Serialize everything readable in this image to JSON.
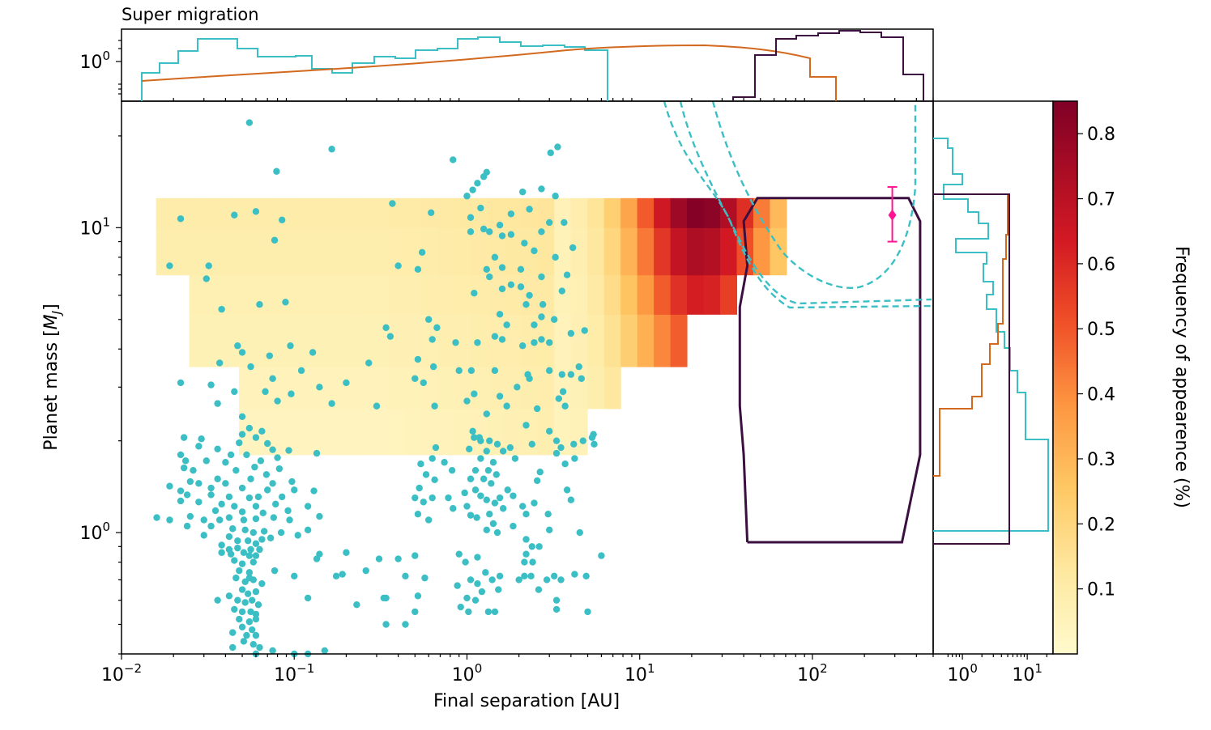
{
  "chart_data": {
    "type": "heatmap",
    "title": "Super migration",
    "xlabel": "Final separation [AU]",
    "ylabel": "Planet mass [M_J]",
    "ylabel_main": "Planet mass [",
    "ylabel_sym": "M",
    "ylabel_sub": "J",
    "ylabel_end": "]",
    "colorbar_label": "Frequency of appearence (%)",
    "x_scale": "log",
    "xlim": [
      0.01,
      500
    ],
    "y_scale": "log",
    "ylim": [
      0.4,
      26
    ],
    "x_ticks": [
      {
        "base": "10",
        "exp": "−2",
        "v": 0.01
      },
      {
        "base": "10",
        "exp": "−1",
        "v": 0.1
      },
      {
        "base": "10",
        "exp": "0",
        "v": 1
      },
      {
        "base": "10",
        "exp": "1",
        "v": 10
      },
      {
        "base": "10",
        "exp": "2",
        "v": 100
      }
    ],
    "y_ticks": [
      {
        "base": "10",
        "exp": "0",
        "v": 1
      },
      {
        "base": "10",
        "exp": "1",
        "v": 10
      }
    ],
    "colorbar_range": [
      0.0,
      0.85
    ],
    "colorbar_ticks": [
      "0.1",
      "0.2",
      "0.3",
      "0.4",
      "0.5",
      "0.6",
      "0.7",
      "0.8"
    ],
    "colors": {
      "scatter": "#3bbfc4",
      "orange_hist": "#d2691e",
      "purple_region": "#3b0f40",
      "marker": "#ff1493"
    },
    "top_hist_ticks": [
      {
        "base": "10",
        "exp": "0"
      }
    ],
    "right_hist_ticks": [
      {
        "base": "10",
        "exp": "0",
        "v": 1
      },
      {
        "base": "10",
        "exp": "1",
        "v": 10
      }
    ],
    "heatmap_mass_bins": [
      3.5,
      5.2,
      7.0,
      10.0,
      13.0
    ],
    "heatmap_cells": [
      {
        "x": 0.02,
        "y": 1.6,
        "f": 0.0
      }
    ],
    "observed_planet": {
      "sep": 290,
      "mass": 11.0,
      "mass_err": [
        9.0,
        13.6
      ]
    },
    "purple_region_outline": [
      [
        42,
        0.93
      ],
      [
        330,
        0.93
      ],
      [
        420,
        1.8
      ],
      [
        420,
        10.5
      ],
      [
        360,
        12.5
      ],
      [
        48,
        12.5
      ],
      [
        40,
        10.5
      ],
      [
        42,
        7.5
      ],
      [
        38,
        5.5
      ],
      [
        38,
        2.6
      ],
      [
        40,
        1.8
      ],
      [
        42,
        0.93
      ]
    ],
    "scatter_points": [
      [
        0.055,
        22.1
      ],
      [
        0.165,
        18.1
      ],
      [
        0.83,
        16.7
      ],
      [
        3.35,
        18.4
      ],
      [
        3.05,
        17.6
      ],
      [
        0.079,
        15.3
      ],
      [
        1.3,
        15.2
      ],
      [
        1.25,
        14.7
      ],
      [
        1.15,
        14.0
      ],
      [
        1.08,
        13.3
      ],
      [
        2.1,
        13.1
      ],
      [
        2.7,
        13.4
      ],
      [
        3.25,
        12.7
      ],
      [
        0.022,
        10.7
      ],
      [
        0.045,
        11.0
      ],
      [
        0.06,
        11.3
      ],
      [
        0.085,
        10.6
      ],
      [
        0.37,
        12.0
      ],
      [
        0.62,
        11.2
      ],
      [
        1.0,
        12.7
      ],
      [
        1.2,
        11.6
      ],
      [
        1.05,
        10.8
      ],
      [
        1.55,
        10.2
      ],
      [
        1.8,
        11.1
      ],
      [
        2.3,
        11.5
      ],
      [
        3.0,
        10.4
      ],
      [
        3.65,
        10.4
      ],
      [
        1.35,
        9.7
      ],
      [
        1.6,
        9.4
      ],
      [
        1.8,
        9.5
      ],
      [
        2.7,
        9.7
      ],
      [
        0.077,
        9.1
      ],
      [
        1.05,
        9.7
      ],
      [
        1.25,
        9.9
      ],
      [
        2.15,
        8.9
      ],
      [
        0.55,
        8.3
      ],
      [
        1.45,
        8.0
      ],
      [
        2.45,
        8.4
      ],
      [
        3.25,
        8.0
      ],
      [
        4.1,
        8.6
      ],
      [
        0.019,
        7.5
      ],
      [
        0.032,
        7.5
      ],
      [
        0.4,
        7.5
      ],
      [
        0.52,
        7.3
      ],
      [
        1.3,
        7.3
      ],
      [
        1.6,
        7.4
      ],
      [
        2.05,
        7.3
      ],
      [
        2.7,
        6.9
      ],
      [
        3.8,
        7.0
      ],
      [
        0.031,
        6.8
      ],
      [
        1.35,
        6.9
      ],
      [
        1.8,
        6.5
      ],
      [
        1.1,
        6.1
      ],
      [
        1.6,
        6.3
      ],
      [
        2.05,
        6.4
      ],
      [
        2.3,
        6.0
      ],
      [
        3.55,
        6.2
      ],
      [
        0.038,
        5.4
      ],
      [
        0.063,
        5.6
      ],
      [
        0.089,
        5.7
      ],
      [
        1.55,
        5.2
      ],
      [
        2.2,
        5.6
      ],
      [
        2.75,
        5.6
      ],
      [
        0.6,
        5.0
      ],
      [
        0.67,
        4.7
      ],
      [
        1.7,
        4.8
      ],
      [
        2.45,
        4.8
      ],
      [
        2.7,
        5.1
      ],
      [
        3.2,
        5.0
      ],
      [
        0.34,
        4.7
      ],
      [
        0.36,
        4.4
      ],
      [
        0.63,
        4.3
      ],
      [
        1.45,
        4.4
      ],
      [
        2.45,
        4.2
      ],
      [
        2.7,
        4.3
      ],
      [
        3.0,
        4.2
      ],
      [
        4.0,
        4.5
      ],
      [
        4.8,
        4.6
      ],
      [
        0.047,
        4.1
      ],
      [
        0.05,
        3.9
      ],
      [
        0.072,
        3.8
      ],
      [
        0.095,
        4.1
      ],
      [
        0.128,
        3.9
      ],
      [
        0.86,
        4.2
      ],
      [
        1.15,
        4.2
      ],
      [
        1.6,
        4.3
      ],
      [
        2.1,
        4.1
      ],
      [
        0.037,
        3.6
      ],
      [
        0.056,
        3.5
      ],
      [
        0.11,
        3.4
      ],
      [
        0.27,
        3.6
      ],
      [
        0.52,
        3.7
      ],
      [
        0.64,
        3.5
      ],
      [
        0.9,
        3.4
      ],
      [
        1.06,
        3.4
      ],
      [
        1.45,
        3.4
      ],
      [
        2.25,
        3.3
      ],
      [
        3.0,
        3.4
      ],
      [
        4.45,
        3.5
      ],
      [
        0.022,
        3.1
      ],
      [
        0.033,
        3.05
      ],
      [
        0.075,
        3.2
      ],
      [
        0.14,
        3.0
      ],
      [
        0.2,
        3.1
      ],
      [
        0.5,
        3.2
      ],
      [
        0.56,
        3.1
      ],
      [
        1.95,
        3.0
      ],
      [
        2.3,
        3.2
      ],
      [
        3.55,
        3.3
      ],
      [
        4.0,
        3.3
      ],
      [
        4.6,
        3.2
      ],
      [
        0.045,
        2.9
      ],
      [
        0.068,
        2.9
      ],
      [
        0.096,
        2.85
      ],
      [
        1.1,
        2.85
      ],
      [
        1.55,
        2.8
      ],
      [
        3.4,
        2.75
      ],
      [
        3.6,
        2.9
      ],
      [
        0.036,
        2.65
      ],
      [
        0.08,
        2.7
      ],
      [
        0.165,
        2.65
      ],
      [
        0.3,
        2.6
      ],
      [
        0.65,
        2.6
      ],
      [
        1.0,
        2.7
      ],
      [
        1.7,
        2.6
      ],
      [
        2.55,
        2.55
      ],
      [
        3.7,
        2.6
      ],
      [
        0.05,
        2.4
      ],
      [
        1.3,
        2.45
      ],
      [
        0.055,
        2.2
      ],
      [
        0.065,
        2.15
      ],
      [
        0.05,
        2.1
      ],
      [
        0.06,
        2.05
      ],
      [
        0.023,
        2.05
      ],
      [
        0.029,
        2.03
      ],
      [
        0.048,
        1.97
      ],
      [
        0.07,
        1.96
      ],
      [
        0.075,
        1.87
      ],
      [
        0.036,
        1.88
      ],
      [
        0.043,
        1.8
      ],
      [
        0.053,
        1.8
      ],
      [
        0.022,
        1.8
      ],
      [
        0.028,
        1.92
      ],
      [
        0.0235,
        1.72
      ],
      [
        0.031,
        1.72
      ],
      [
        0.04,
        1.7
      ],
      [
        0.064,
        1.72
      ],
      [
        0.08,
        1.76
      ],
      [
        0.093,
        1.86
      ],
      [
        0.135,
        1.82
      ],
      [
        0.023,
        1.63
      ],
      [
        0.026,
        1.6
      ],
      [
        0.046,
        1.6
      ],
      [
        0.059,
        1.64
      ],
      [
        0.069,
        1.55
      ],
      [
        0.082,
        1.62
      ],
      [
        0.036,
        1.5
      ],
      [
        0.056,
        1.5
      ],
      [
        0.025,
        1.47
      ],
      [
        0.028,
        1.45
      ],
      [
        0.04,
        1.45
      ],
      [
        0.075,
        1.45
      ],
      [
        0.097,
        1.47
      ],
      [
        0.033,
        1.4
      ],
      [
        0.05,
        1.4
      ],
      [
        0.07,
        1.38
      ],
      [
        0.019,
        1.42
      ],
      [
        0.022,
        1.37
      ],
      [
        0.024,
        1.33
      ],
      [
        0.033,
        1.33
      ],
      [
        0.042,
        1.31
      ],
      [
        0.055,
        1.3
      ],
      [
        0.062,
        1.31
      ],
      [
        0.085,
        1.31
      ],
      [
        0.1,
        1.38
      ],
      [
        0.13,
        1.37
      ],
      [
        0.022,
        1.27
      ],
      [
        0.028,
        1.26
      ],
      [
        0.038,
        1.24
      ],
      [
        0.045,
        1.22
      ],
      [
        0.06,
        1.22
      ],
      [
        0.078,
        1.24
      ],
      [
        0.035,
        1.18
      ],
      [
        0.05,
        1.17
      ],
      [
        0.066,
        1.16
      ],
      [
        0.092,
        1.18
      ],
      [
        0.12,
        1.22
      ],
      [
        0.016,
        1.12
      ],
      [
        0.019,
        1.1
      ],
      [
        0.025,
        1.13
      ],
      [
        0.03,
        1.1
      ],
      [
        0.037,
        1.1
      ],
      [
        0.042,
        1.12
      ],
      [
        0.051,
        1.1
      ],
      [
        0.06,
        1.11
      ],
      [
        0.076,
        1.12
      ],
      [
        0.094,
        1.1
      ],
      [
        0.14,
        1.13
      ],
      [
        0.024,
        1.05
      ],
      [
        0.033,
        1.05
      ],
      [
        0.044,
        1.03
      ],
      [
        0.052,
        1.02
      ],
      [
        0.058,
        1.0
      ],
      [
        0.067,
        1.01
      ],
      [
        0.084,
        1.0
      ],
      [
        0.12,
        1.02
      ],
      [
        0.03,
        0.98
      ],
      [
        0.042,
        0.97
      ],
      [
        0.047,
        0.94
      ],
      [
        0.054,
        0.94
      ],
      [
        0.065,
        0.95
      ],
      [
        0.073,
        0.96
      ],
      [
        0.105,
        0.98
      ],
      [
        0.038,
        0.91
      ],
      [
        0.042,
        0.88
      ],
      [
        0.047,
        0.89
      ],
      [
        0.056,
        0.88
      ],
      [
        0.063,
        0.88
      ],
      [
        0.06,
        0.92
      ],
      [
        0.038,
        0.86
      ],
      [
        0.043,
        0.85
      ],
      [
        0.051,
        0.86
      ],
      [
        0.055,
        0.84
      ],
      [
        0.06,
        0.84
      ],
      [
        0.045,
        0.81
      ],
      [
        0.05,
        0.79
      ],
      [
        0.058,
        0.8
      ],
      [
        0.048,
        0.75
      ],
      [
        0.055,
        0.74
      ],
      [
        0.046,
        0.71
      ],
      [
        0.052,
        0.69
      ],
      [
        0.058,
        0.7
      ],
      [
        0.05,
        0.65
      ],
      [
        0.054,
        0.63
      ],
      [
        0.06,
        0.64
      ],
      [
        0.047,
        0.6
      ],
      [
        0.052,
        0.59
      ],
      [
        0.057,
        0.6
      ],
      [
        0.062,
        0.58
      ],
      [
        0.045,
        0.56
      ],
      [
        0.05,
        0.55
      ],
      [
        0.056,
        0.55
      ],
      [
        0.06,
        0.54
      ],
      [
        0.048,
        0.52
      ],
      [
        0.055,
        0.51
      ],
      [
        0.06,
        0.52
      ],
      [
        0.05,
        0.49
      ],
      [
        0.057,
        0.48
      ],
      [
        0.044,
        0.47
      ],
      [
        0.053,
        0.46
      ],
      [
        0.06,
        0.46
      ],
      [
        0.051,
        0.44
      ],
      [
        0.058,
        0.43
      ],
      [
        0.044,
        0.42
      ],
      [
        0.063,
        0.42
      ],
      [
        0.06,
        0.4
      ],
      [
        0.055,
        0.71
      ],
      [
        0.036,
        0.6
      ],
      [
        0.042,
        0.62
      ],
      [
        0.065,
        0.68
      ],
      [
        0.077,
        0.75
      ],
      [
        0.1,
        0.72
      ],
      [
        0.14,
        0.85
      ],
      [
        0.2,
        0.86
      ],
      [
        0.12,
        0.61
      ],
      [
        0.135,
        0.82
      ],
      [
        0.175,
        0.72
      ],
      [
        0.19,
        0.73
      ],
      [
        0.23,
        0.58
      ],
      [
        0.31,
        0.82
      ],
      [
        0.4,
        0.82
      ],
      [
        0.5,
        0.84
      ],
      [
        0.44,
        0.72
      ],
      [
        0.34,
        0.61
      ],
      [
        0.57,
        0.71
      ],
      [
        0.52,
        0.62
      ],
      [
        0.5,
        0.55
      ],
      [
        0.33,
        0.61
      ],
      [
        0.26,
        0.75
      ],
      [
        0.34,
        0.5
      ],
      [
        0.44,
        0.5
      ],
      [
        0.52,
        1.15
      ],
      [
        0.6,
        1.1
      ],
      [
        0.56,
        1.26
      ],
      [
        0.63,
        1.3
      ],
      [
        0.5,
        1.3
      ],
      [
        0.53,
        1.4
      ],
      [
        0.65,
        1.49
      ],
      [
        0.58,
        1.55
      ],
      [
        0.54,
        1.68
      ],
      [
        0.63,
        1.75
      ],
      [
        0.66,
        1.9
      ],
      [
        0.74,
        1.7
      ],
      [
        0.82,
        1.6
      ],
      [
        0.78,
        1.3
      ],
      [
        0.83,
        1.2
      ],
      [
        0.97,
        1.35
      ],
      [
        1.05,
        1.5
      ],
      [
        1.12,
        1.6
      ],
      [
        1.2,
        1.75
      ],
      [
        1.3,
        1.85
      ],
      [
        1.03,
        1.88
      ],
      [
        1.1,
        2.05
      ],
      [
        1.18,
        2.05
      ],
      [
        1.08,
        2.15
      ],
      [
        1.2,
        2.0
      ],
      [
        1.35,
        2.0
      ],
      [
        1.5,
        1.95
      ],
      [
        1.62,
        1.85
      ],
      [
        1.78,
        1.9
      ],
      [
        1.9,
        1.75
      ],
      [
        1.42,
        1.7
      ],
      [
        1.25,
        1.5
      ],
      [
        1.33,
        1.6
      ],
      [
        1.48,
        1.55
      ],
      [
        1.38,
        1.45
      ],
      [
        1.12,
        1.38
      ],
      [
        1.2,
        1.32
      ],
      [
        1.3,
        1.28
      ],
      [
        1.45,
        1.25
      ],
      [
        1.55,
        1.3
      ],
      [
        1.62,
        1.2
      ],
      [
        1.72,
        1.38
      ],
      [
        1.85,
        1.32
      ],
      [
        2.1,
        1.22
      ],
      [
        2.45,
        1.25
      ],
      [
        1.0,
        1.22
      ],
      [
        1.05,
        1.14
      ],
      [
        1.14,
        1.12
      ],
      [
        1.35,
        1.15
      ],
      [
        1.42,
        1.07
      ],
      [
        1.5,
        1.0
      ],
      [
        1.3,
        1.02
      ],
      [
        1.85,
        1.05
      ],
      [
        2.2,
        1.15
      ],
      [
        2.2,
        0.95
      ],
      [
        2.38,
        0.9
      ],
      [
        2.15,
        0.8
      ],
      [
        2.2,
        0.85
      ],
      [
        2.4,
        0.8
      ],
      [
        1.15,
        0.83
      ],
      [
        1.28,
        0.74
      ],
      [
        1.05,
        0.7
      ],
      [
        1.15,
        0.68
      ],
      [
        1.22,
        0.64
      ],
      [
        1.4,
        0.7
      ],
      [
        1.55,
        0.72
      ],
      [
        1.52,
        0.65
      ],
      [
        1.12,
        0.6
      ],
      [
        1.02,
        0.55
      ],
      [
        1.33,
        0.55
      ],
      [
        1.45,
        0.55
      ],
      [
        0.9,
        0.85
      ],
      [
        0.98,
        0.8
      ],
      [
        0.88,
        0.67
      ],
      [
        1.0,
        0.61
      ],
      [
        0.92,
        0.57
      ],
      [
        2.0,
        0.7
      ],
      [
        2.15,
        0.72
      ],
      [
        2.35,
        0.72
      ],
      [
        2.6,
        0.65
      ],
      [
        2.9,
        0.7
      ],
      [
        3.2,
        0.72
      ],
      [
        3.3,
        0.6
      ],
      [
        3.3,
        0.56
      ],
      [
        3.5,
        0.7
      ],
      [
        4.2,
        0.73
      ],
      [
        4.5,
        1.0
      ],
      [
        6.0,
        0.84
      ],
      [
        4.0,
        1.28
      ],
      [
        3.8,
        1.38
      ],
      [
        3.7,
        1.68
      ],
      [
        3.3,
        1.82
      ],
      [
        3.5,
        1.9
      ],
      [
        3.3,
        2.0
      ],
      [
        3.0,
        2.15
      ],
      [
        4.2,
        1.75
      ],
      [
        4.15,
        1.95
      ],
      [
        4.7,
        2.0
      ],
      [
        5.45,
        1.95
      ],
      [
        5.4,
        2.1
      ],
      [
        5.3,
        2.05
      ],
      [
        3.0,
        1.02
      ],
      [
        2.95,
        1.15
      ],
      [
        2.55,
        1.48
      ],
      [
        2.65,
        1.58
      ],
      [
        2.38,
        1.95
      ],
      [
        2.2,
        2.25
      ],
      [
        4.9,
        0.72
      ],
      [
        5.0,
        0.55
      ],
      [
        2.62,
        0.9
      ],
      [
        0.06,
        0.4
      ],
      [
        0.075,
        0.41
      ],
      [
        0.1,
        0.4
      ],
      [
        0.12,
        0.4
      ],
      [
        0.15,
        0.41
      ]
    ]
  }
}
